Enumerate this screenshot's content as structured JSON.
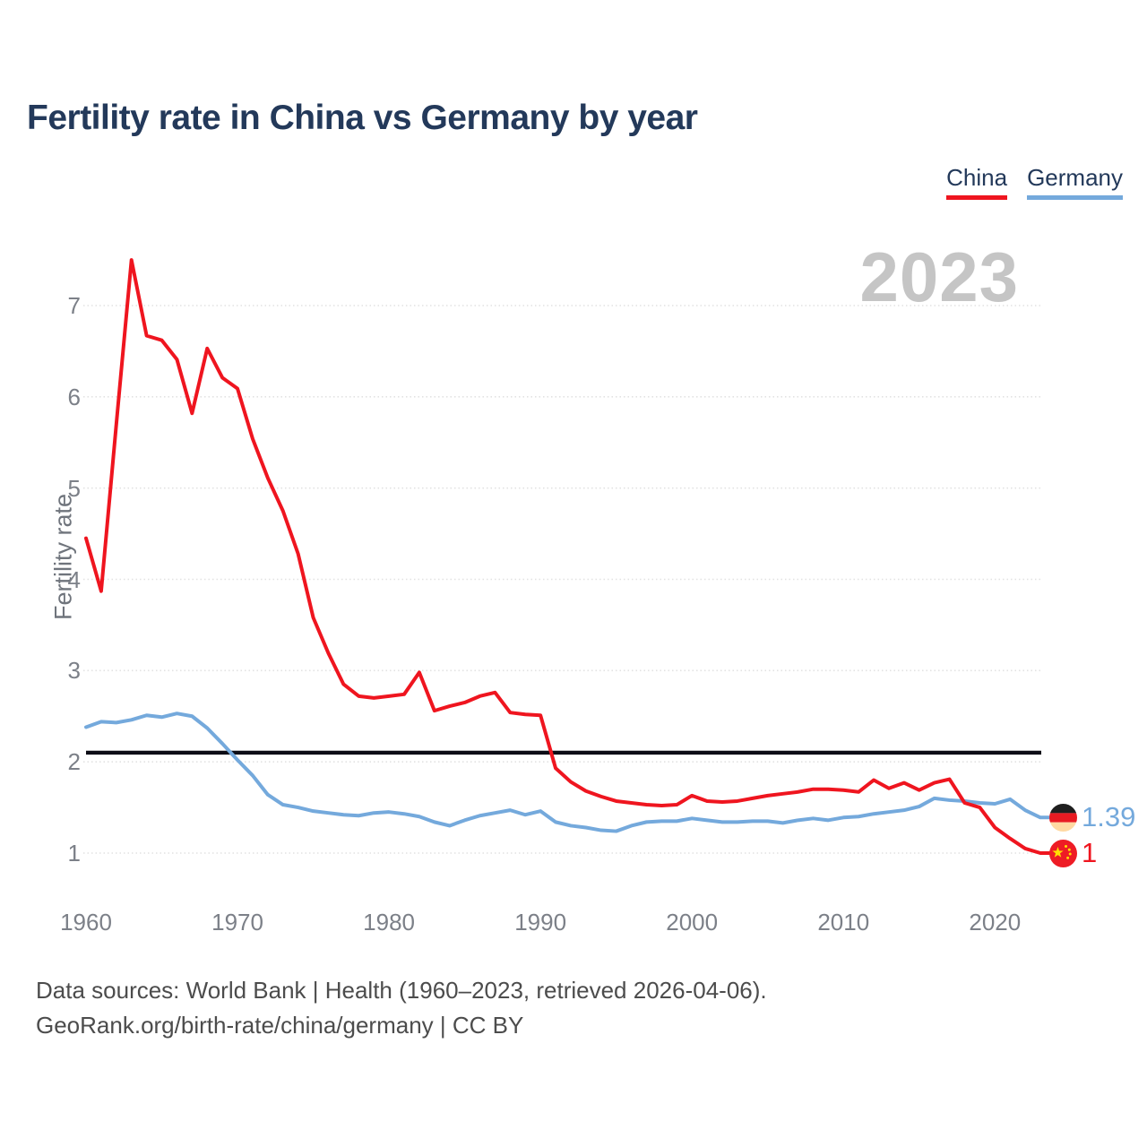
{
  "title": "Fertility rate in China vs Germany by year",
  "watermark": "2023",
  "legend": [
    {
      "label": "China",
      "color": "#ef151f"
    },
    {
      "label": "Germany",
      "color": "#74a9dc"
    }
  ],
  "y_axis": {
    "label": "Fertility rate",
    "ticks": [
      "1",
      "2",
      "3",
      "4",
      "5",
      "6",
      "7"
    ]
  },
  "x_axis": {
    "ticks": [
      "1960",
      "1970",
      "1980",
      "1990",
      "2000",
      "2010",
      "2020"
    ]
  },
  "end_labels": {
    "germany_value": "1.39",
    "china_value": "1"
  },
  "footer": {
    "line1": "Data sources: World Bank | Health (1960–2023, retrieved 2026-04-06).",
    "line2": "GeoRank.org/birth-rate/china/germany | CC BY"
  },
  "chart_data": {
    "type": "line",
    "title": "Fertility rate in China vs Germany by year",
    "xlabel": "",
    "ylabel": "Fertility rate",
    "ylim": [
      1,
      7
    ],
    "x_range": [
      1960,
      2023
    ],
    "grid": "horizontal-dotted",
    "legend_position": "top-right",
    "reference_line": {
      "value": 2.1,
      "color": "#0d0d16"
    },
    "x": [
      1960,
      1961,
      1962,
      1963,
      1964,
      1965,
      1966,
      1967,
      1968,
      1969,
      1970,
      1971,
      1972,
      1973,
      1974,
      1975,
      1976,
      1977,
      1978,
      1979,
      1980,
      1981,
      1982,
      1983,
      1984,
      1985,
      1986,
      1987,
      1988,
      1989,
      1990,
      1991,
      1992,
      1993,
      1994,
      1995,
      1996,
      1997,
      1998,
      1999,
      2000,
      2001,
      2002,
      2003,
      2004,
      2005,
      2006,
      2007,
      2008,
      2009,
      2010,
      2011,
      2012,
      2013,
      2014,
      2015,
      2016,
      2017,
      2018,
      2019,
      2020,
      2021,
      2022,
      2023
    ],
    "series": [
      {
        "name": "China",
        "color": "#ef151f",
        "end_label": "1",
        "values": [
          4.45,
          3.87,
          5.7,
          7.5,
          6.67,
          6.62,
          6.41,
          5.82,
          6.53,
          6.21,
          6.09,
          5.54,
          5.11,
          4.75,
          4.28,
          3.58,
          3.19,
          2.85,
          2.72,
          2.7,
          2.72,
          2.74,
          2.98,
          2.56,
          2.61,
          2.65,
          2.72,
          2.76,
          2.54,
          2.52,
          2.51,
          1.93,
          1.78,
          1.68,
          1.62,
          1.57,
          1.55,
          1.53,
          1.52,
          1.53,
          1.63,
          1.57,
          1.56,
          1.57,
          1.6,
          1.63,
          1.65,
          1.67,
          1.7,
          1.7,
          1.69,
          1.67,
          1.8,
          1.71,
          1.77,
          1.69,
          1.77,
          1.81,
          1.55,
          1.5,
          1.28,
          1.16,
          1.05,
          1.0
        ]
      },
      {
        "name": "Germany",
        "color": "#74a9dc",
        "end_label": "1.39",
        "values": [
          2.38,
          2.44,
          2.43,
          2.46,
          2.51,
          2.49,
          2.53,
          2.5,
          2.37,
          2.2,
          2.02,
          1.85,
          1.64,
          1.53,
          1.5,
          1.46,
          1.44,
          1.42,
          1.41,
          1.44,
          1.45,
          1.43,
          1.4,
          1.34,
          1.3,
          1.36,
          1.41,
          1.44,
          1.47,
          1.42,
          1.46,
          1.34,
          1.3,
          1.28,
          1.25,
          1.24,
          1.3,
          1.34,
          1.35,
          1.35,
          1.38,
          1.36,
          1.34,
          1.34,
          1.35,
          1.35,
          1.33,
          1.36,
          1.38,
          1.36,
          1.39,
          1.4,
          1.43,
          1.45,
          1.47,
          1.51,
          1.6,
          1.58,
          1.57,
          1.55,
          1.54,
          1.59,
          1.47,
          1.39
        ]
      }
    ]
  }
}
